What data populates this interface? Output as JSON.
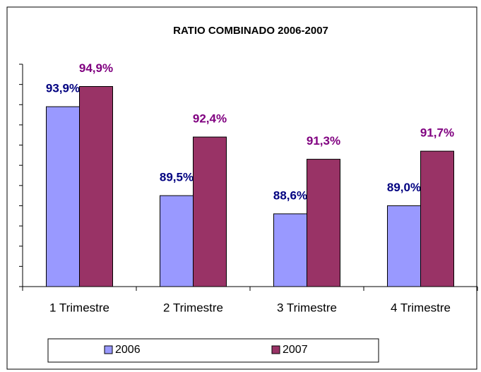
{
  "chart_data": {
    "type": "bar",
    "title": "RATIO COMBINADO 2006-2007",
    "categories": [
      "1 Trimestre",
      "2 Trimestre",
      "3 Trimestre",
      "4 Trimestre"
    ],
    "series": [
      {
        "name": "2006",
        "color": "#9999ff",
        "label_color": "#000080",
        "values": [
          93.9,
          89.5,
          88.6,
          89.0
        ],
        "value_labels": [
          "93,9%",
          "89,5%",
          "88,6%",
          "89,0%"
        ]
      },
      {
        "name": "2007",
        "color": "#993366",
        "label_color": "#800080",
        "values": [
          94.9,
          92.4,
          91.3,
          91.7
        ],
        "value_labels": [
          "94,9%",
          "92,4%",
          "91,3%",
          "91,7%"
        ]
      }
    ],
    "ylim": [
      85,
      96
    ],
    "yticks": [
      85,
      86,
      87,
      88,
      89,
      90,
      91,
      92,
      93,
      94,
      95,
      96
    ]
  }
}
